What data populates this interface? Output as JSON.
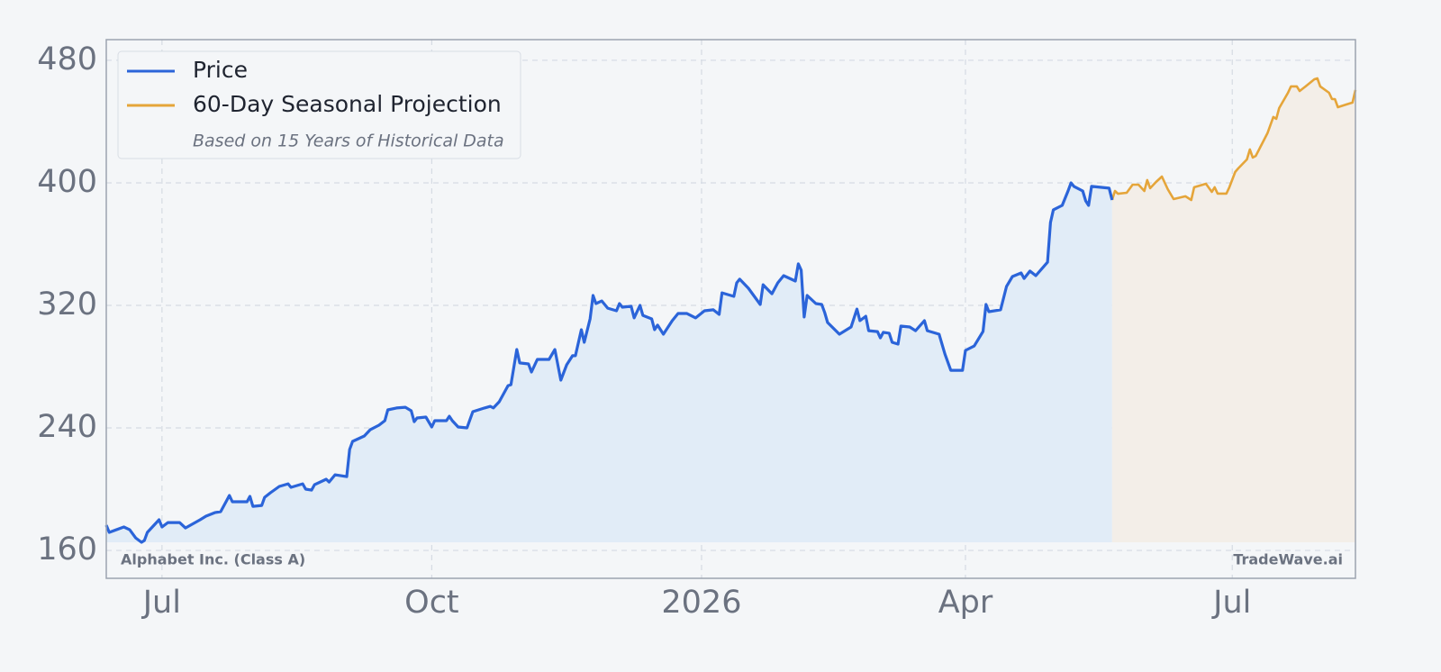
{
  "chart_data": {
    "type": "line",
    "series": [
      {
        "name": "Price",
        "color": "#2b64d9",
        "fill": "#e1ecf7",
        "x": [
          -19,
          -18,
          -13,
          -11,
          -9,
          -7,
          -6,
          -5,
          -1,
          0,
          2,
          6,
          8,
          13,
          15,
          18,
          20,
          22,
          23,
          24,
          29,
          30,
          31,
          34,
          35,
          37,
          40,
          43,
          44,
          48,
          49,
          51,
          52,
          56,
          57,
          59,
          63,
          64,
          65,
          69,
          71,
          74,
          76,
          77,
          80,
          83,
          85,
          86,
          87,
          90,
          92,
          93,
          97,
          98,
          99,
          101,
          104,
          106,
          110,
          112,
          113,
          115,
          118,
          119,
          121,
          122,
          125,
          126,
          128,
          132,
          134,
          136,
          138,
          140,
          141,
          143,
          144,
          146,
          147,
          148,
          150,
          152,
          155,
          156,
          157,
          160,
          161,
          163,
          164,
          167,
          168,
          169,
          171,
          174,
          176,
          179,
          182,
          185,
          188,
          190,
          191,
          195,
          196,
          197,
          200,
          204,
          205,
          208,
          210,
          212,
          216,
          217,
          218,
          219,
          220,
          223,
          225,
          226,
          227,
          231,
          235,
          237,
          238,
          240,
          241,
          244,
          245,
          246,
          248,
          249,
          251,
          252,
          255,
          257,
          260,
          261,
          265,
          267,
          269,
          273,
          274,
          277,
          280,
          281,
          282,
          286,
          288,
          290,
          293,
          294,
          296,
          298,
          302,
          303,
          304,
          307,
          309,
          310,
          311,
          314,
          315,
          316,
          317,
          323,
          324
        ],
        "values": [
          176.5,
          171.8,
          175.3,
          173.5,
          168.2,
          165.3,
          166.5,
          171.8,
          180.0,
          175.3,
          178.2,
          178.2,
          174.7,
          180.0,
          182.4,
          184.7,
          185.3,
          192.4,
          195.9,
          191.8,
          191.8,
          195.3,
          188.8,
          189.4,
          194.7,
          197.7,
          201.8,
          203.5,
          201.2,
          203.5,
          200.0,
          199.4,
          202.9,
          206.5,
          204.7,
          209.4,
          208.2,
          225.9,
          231.2,
          234.7,
          238.8,
          241.8,
          244.7,
          251.8,
          253.0,
          253.5,
          251.2,
          244.1,
          246.5,
          247.1,
          240.6,
          244.7,
          244.7,
          247.6,
          244.7,
          240.6,
          240.0,
          250.6,
          253.0,
          254.1,
          253.0,
          257.1,
          267.6,
          268.2,
          291.2,
          282.4,
          281.8,
          276.5,
          284.7,
          284.7,
          291.2,
          271.2,
          281.2,
          287.1,
          287.1,
          304.1,
          295.9,
          311.2,
          326.5,
          321.2,
          322.9,
          318.2,
          316.5,
          321.2,
          318.8,
          319.4,
          311.8,
          320.0,
          313.5,
          311.2,
          304.1,
          307.1,
          301.2,
          310.0,
          314.7,
          314.7,
          311.8,
          316.5,
          317.1,
          314.1,
          328.2,
          325.9,
          334.7,
          337.1,
          331.2,
          320.6,
          333.5,
          327.6,
          334.7,
          339.4,
          335.9,
          347.1,
          343.0,
          312.4,
          326.5,
          321.2,
          320.6,
          315.3,
          308.8,
          301.2,
          305.9,
          317.6,
          310.0,
          312.9,
          303.5,
          302.9,
          298.8,
          302.4,
          301.8,
          295.9,
          294.7,
          306.5,
          305.9,
          303.5,
          310.0,
          303.5,
          301.2,
          288.2,
          277.6,
          277.6,
          290.6,
          293.5,
          303.0,
          320.6,
          315.9,
          317.1,
          332.4,
          338.8,
          341.2,
          337.6,
          342.4,
          339.4,
          348.2,
          374.1,
          382.4,
          385.3,
          394.7,
          400.0,
          397.7,
          394.7,
          388.2,
          385.3,
          397.7,
          396.5,
          388.8
        ]
      },
      {
        "name": "60-Day Seasonal Projection",
        "color": "#e5a53a",
        "fill": "#f3eee8",
        "x": [
          324,
          325,
          326,
          329,
          331,
          333,
          335,
          336,
          337,
          339,
          341,
          343,
          345,
          349,
          351,
          352,
          356,
          358,
          359,
          360,
          363,
          364,
          366,
          367,
          370,
          371,
          372,
          373,
          377,
          379,
          380,
          381,
          384,
          385,
          387,
          388,
          390,
          393,
          394,
          395,
          398,
          399,
          400,
          401,
          404,
          406,
          407
        ],
        "values": [
          388.8,
          394.7,
          392.9,
          393.5,
          398.8,
          398.8,
          394.7,
          401.8,
          396.5,
          400.6,
          404.1,
          395.9,
          389.4,
          391.2,
          388.8,
          397.1,
          399.4,
          394.1,
          397.1,
          393.0,
          393.0,
          397.1,
          407.1,
          409.4,
          415.3,
          421.8,
          416.5,
          417.6,
          432.4,
          443.0,
          441.8,
          448.8,
          458.8,
          463.0,
          463.0,
          460.0,
          463.0,
          467.6,
          468.2,
          463.0,
          458.8,
          454.7,
          454.7,
          449.4,
          451.2,
          452.4,
          460.6
        ]
      }
    ],
    "legend_note": "Based on 15 Years of Historical Data",
    "source_label": "Alphabet Inc. (Class A)",
    "watermark": "TradeWave.ai",
    "xlim": [
      -19,
      407
    ],
    "xticks": [
      {
        "value": 0,
        "label": "Jul"
      },
      {
        "value": 92,
        "label": "Oct"
      },
      {
        "value": 184,
        "label": "2026"
      },
      {
        "value": 274,
        "label": "Apr"
      },
      {
        "value": 365,
        "label": "Jul"
      }
    ],
    "ylim": [
      141.8,
      493.5
    ],
    "yticks": [
      160,
      240,
      320,
      400,
      480
    ],
    "grid": true,
    "legend": "upper-left"
  }
}
